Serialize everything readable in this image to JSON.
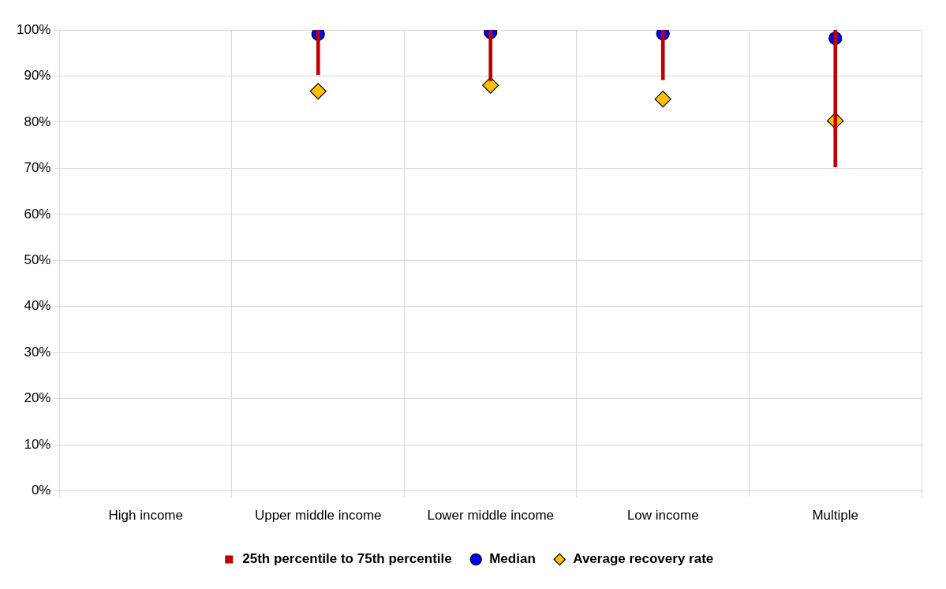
{
  "chart_data": {
    "type": "bar",
    "categories": [
      "High income",
      "Upper middle income",
      "Lower middle income",
      "Low income",
      "Multiple"
    ],
    "series": [
      {
        "name": "25th percentile to 75th percentile",
        "type": "bar",
        "color": "#c00000",
        "base": [
          null,
          90.3,
          89.0,
          89.2,
          70.3
        ],
        "values": [
          null,
          9.7,
          11.0,
          10.8,
          29.7
        ]
      },
      {
        "name": "Median",
        "type": "scatter",
        "marker": "circle",
        "color": "#0000ff",
        "x": [
          "Upper middle income",
          "Lower middle income",
          "Low income",
          "Multiple"
        ],
        "values": [
          99.1,
          99.5,
          99.2,
          98.2
        ]
      },
      {
        "name": "Average recovery rate",
        "type": "scatter",
        "marker": "diamond",
        "color": "#ffc000",
        "x": [
          "Upper middle income",
          "Lower middle income",
          "Low income",
          "Multiple"
        ],
        "values": [
          86.7,
          88.0,
          85.0,
          80.3
        ]
      }
    ],
    "ylim": [
      0,
      100
    ],
    "yticks": [
      {
        "value": 0,
        "label": "0%"
      },
      {
        "value": 10,
        "label": "10%"
      },
      {
        "value": 20,
        "label": "20%"
      },
      {
        "value": 30,
        "label": "30%"
      },
      {
        "value": 40,
        "label": "40%"
      },
      {
        "value": 50,
        "label": "50%"
      },
      {
        "value": 60,
        "label": "60%"
      },
      {
        "value": 70,
        "label": "70%"
      },
      {
        "value": 80,
        "label": "80%"
      },
      {
        "value": 90,
        "label": "90%"
      },
      {
        "value": 100,
        "label": "100%"
      }
    ],
    "grid": true,
    "legend": "bottom"
  }
}
